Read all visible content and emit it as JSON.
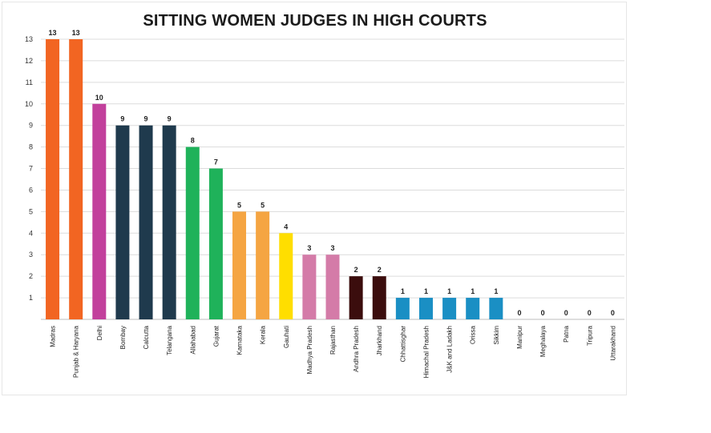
{
  "chart_data": {
    "type": "bar",
    "title": "SITTING WOMEN JUDGES IN HIGH COURTS",
    "xlabel": "",
    "ylabel": "",
    "ylim": [
      0,
      13
    ],
    "yticks": [
      1,
      2,
      3,
      4,
      5,
      6,
      7,
      8,
      9,
      10,
      11,
      12,
      13
    ],
    "grid": true,
    "categories": [
      "Madras",
      "Punjab & Haryana",
      "Delhi",
      "Bombay",
      "Calcutta",
      "Telangana",
      "Allahabad",
      "Gujarat",
      "Karnataka",
      "Kerala",
      "Gauhati",
      "Madhya Pradesh",
      "Rajasthan",
      "Andhra Pradesh",
      "Jharkhand",
      "Chhattisghar",
      "Himachal Pradesh",
      "J&K and Ladakh",
      "Orissa",
      "Sikkim",
      "Manipur",
      "Meghalaya",
      "Patna",
      "Tripura",
      "Uttarakhand"
    ],
    "values": [
      13,
      13,
      10,
      9,
      9,
      9,
      8,
      7,
      5,
      5,
      4,
      3,
      3,
      2,
      2,
      1,
      1,
      1,
      1,
      1,
      0,
      0,
      0,
      0,
      0
    ],
    "colors": [
      "#f26522",
      "#f26522",
      "#c2409c",
      "#1f3a4d",
      "#1f3a4d",
      "#1f3a4d",
      "#1fb25a",
      "#1fb25a",
      "#f5a542",
      "#f5a542",
      "#ffde00",
      "#d47ba8",
      "#d47ba8",
      "#3b0d0d",
      "#3b0d0d",
      "#1a8fc4",
      "#1a8fc4",
      "#1a8fc4",
      "#1a8fc4",
      "#1a8fc4",
      "#cccccc",
      "#cccccc",
      "#cccccc",
      "#cccccc",
      "#cccccc"
    ]
  }
}
